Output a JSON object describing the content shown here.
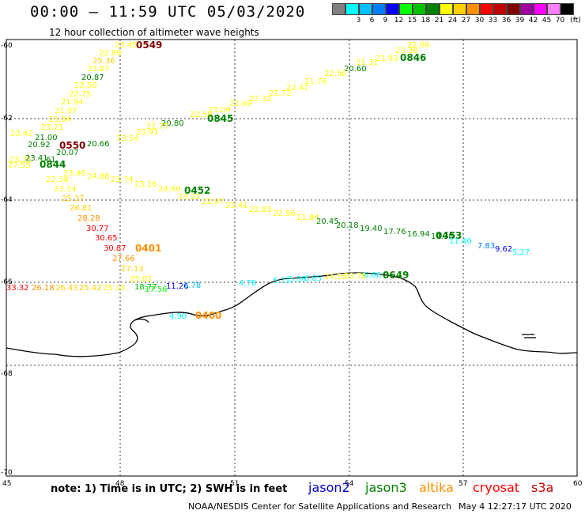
{
  "header": {
    "title": "00:00 – 11:59 UTC 05/03/2020",
    "subtitle": "12 hour collection of altimeter wave heights"
  },
  "colorbar": {
    "unit_label": "(ft)",
    "bins": [
      {
        "label": "",
        "color": "#808080"
      },
      {
        "label": "3",
        "color": "#00ffff"
      },
      {
        "label": "6",
        "color": "#00c0ff"
      },
      {
        "label": "9",
        "color": "#0080ff"
      },
      {
        "label": "12",
        "color": "#0000ff"
      },
      {
        "label": "15",
        "color": "#00ff00"
      },
      {
        "label": "18",
        "color": "#00c000"
      },
      {
        "label": "21",
        "color": "#008000"
      },
      {
        "label": "24",
        "color": "#ffff00"
      },
      {
        "label": "27",
        "color": "#ffd000"
      },
      {
        "label": "30",
        "color": "#ff9000"
      },
      {
        "label": "33",
        "color": "#ff0000"
      },
      {
        "label": "36",
        "color": "#c00000"
      },
      {
        "label": "39",
        "color": "#800000"
      },
      {
        "label": "42",
        "color": "#a000a0"
      },
      {
        "label": "45",
        "color": "#ff00ff"
      },
      {
        "label": "70",
        "color": "#ff80ff"
      },
      {
        "label": "",
        "color": "#000000"
      }
    ]
  },
  "axes": {
    "lat_labels": [
      "-60",
      "-62",
      "-64",
      "-66",
      "-68",
      "-70"
    ],
    "lon_labels": [
      "45",
      "48",
      "51",
      "54",
      "57",
      "60"
    ]
  },
  "passes": [
    {
      "time": "0549",
      "color": "#800000"
    },
    {
      "time": "0846",
      "color": "#008000"
    },
    {
      "time": "0845",
      "color": "#008000"
    },
    {
      "time": "0550",
      "color": "#800000"
    },
    {
      "time": "0844",
      "color": "#008000"
    },
    {
      "time": "0452",
      "color": "#008000"
    },
    {
      "time": "0453",
      "color": "#008000"
    },
    {
      "time": "0401",
      "color": "#ff9000"
    },
    {
      "time": "0400",
      "color": "#ff9000"
    },
    {
      "time": "0649",
      "color": "#008000"
    }
  ],
  "track_labels": {
    "t1": [
      "23.45",
      "22.89",
      "25.36",
      "23.87",
      "20.87",
      "23.50",
      "22.75",
      "21.94",
      "21.07",
      "23.04",
      "23.21",
      "23.42",
      "21.00",
      "20.92",
      "20.07",
      "20.66",
      "23.54",
      "23.91"
    ],
    "t2": [
      "22.06",
      "23.38",
      "20.60",
      "21.76",
      "22.47",
      "22.72",
      "22.32",
      "22.69",
      "23.09",
      "20.80"
    ],
    "t3": [
      "22.38",
      "23.14",
      "25.37",
      "26.81",
      "28.28",
      "30.77",
      "30.65",
      "30.87",
      "27.66",
      "27.13",
      "25.01",
      "20.45",
      "7.83",
      "9.62",
      "5.27"
    ],
    "t4": [
      "33.32",
      "11.26",
      "4.78",
      "4.90"
    ]
  },
  "notes": {
    "note": "note:  1) Time is in UTC;  2) SWH is in feet",
    "satellites": [
      {
        "name": "jason2",
        "color": "#0000cc"
      },
      {
        "name": "jason3",
        "color": "#008000"
      },
      {
        "name": "altika",
        "color": "#ff9000"
      },
      {
        "name": "cryosat",
        "color": "#ff0000"
      },
      {
        "name": "s3a",
        "color": "#c00000"
      }
    ]
  },
  "footer": {
    "credit": "NOAA/NESDIS Center for Satellite Applications and Research",
    "timestamp": "May  4 12:27:17 UTC 2020"
  }
}
